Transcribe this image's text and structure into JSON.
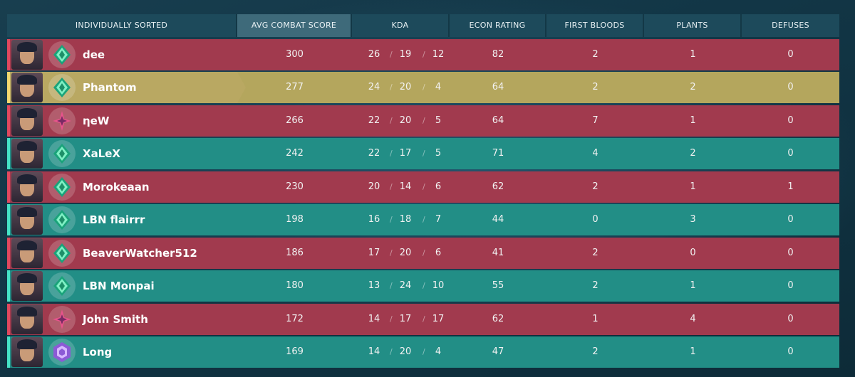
{
  "header": {
    "sorted_label": "INDIVIDUALLY SORTED",
    "columns": [
      "AVG COMBAT SCORE",
      "KDA",
      "ECON RATING",
      "FIRST BLOODS",
      "PLANTS",
      "DEFUSES"
    ],
    "active_column": "AVG COMBAT SCORE"
  },
  "colors": {
    "enemy_row": "#a13a4e",
    "ally_row": "#228e86",
    "self_row": "#b4a65d",
    "enemy_stripe": "#e0485e",
    "ally_stripe": "#45e3c6",
    "self_stripe": "#f2d86f"
  },
  "players": [
    {
      "name": "dee",
      "team": "red",
      "rank_icon": "green-diamond-rank-icon",
      "acs": "300",
      "k": "26",
      "d": "19",
      "a": "12",
      "econ": "82",
      "fb": "2",
      "plants": "1",
      "defuses": "0"
    },
    {
      "name": "Phantom",
      "team": "self",
      "rank_icon": "green-diamond-rank-icon",
      "acs": "277",
      "k": "24",
      "d": "20",
      "a": "4",
      "econ": "64",
      "fb": "2",
      "plants": "2",
      "defuses": "0"
    },
    {
      "name": "ηeW",
      "team": "red",
      "rank_icon": "pink-star-rank-icon",
      "acs": "266",
      "k": "22",
      "d": "20",
      "a": "5",
      "econ": "64",
      "fb": "7",
      "plants": "1",
      "defuses": "0"
    },
    {
      "name": "XaLeX",
      "team": "green",
      "rank_icon": "green-diamond-rank-icon",
      "acs": "242",
      "k": "22",
      "d": "17",
      "a": "5",
      "econ": "71",
      "fb": "4",
      "plants": "2",
      "defuses": "0"
    },
    {
      "name": "Morokeaan",
      "team": "red",
      "rank_icon": "green-diamond-rank-icon",
      "acs": "230",
      "k": "20",
      "d": "14",
      "a": "6",
      "econ": "62",
      "fb": "2",
      "plants": "1",
      "defuses": "1"
    },
    {
      "name": "LBN flairrr",
      "team": "green",
      "rank_icon": "green-diamond-rank-icon",
      "acs": "198",
      "k": "16",
      "d": "18",
      "a": "7",
      "econ": "44",
      "fb": "0",
      "plants": "3",
      "defuses": "0"
    },
    {
      "name": "BeaverWatcher512",
      "team": "red",
      "rank_icon": "green-diamond-rank-icon",
      "acs": "186",
      "k": "17",
      "d": "20",
      "a": "6",
      "econ": "41",
      "fb": "2",
      "plants": "0",
      "defuses": "0"
    },
    {
      "name": "LBN Monpai",
      "team": "green",
      "rank_icon": "green-diamond-rank-icon",
      "acs": "180",
      "k": "13",
      "d": "24",
      "a": "10",
      "econ": "55",
      "fb": "2",
      "plants": "1",
      "defuses": "0"
    },
    {
      "name": "John Smith",
      "team": "red",
      "rank_icon": "pink-star-rank-icon",
      "acs": "172",
      "k": "14",
      "d": "17",
      "a": "17",
      "econ": "62",
      "fb": "1",
      "plants": "4",
      "defuses": "0"
    },
    {
      "name": "Long",
      "team": "green",
      "rank_icon": "purple-hex-rank-icon",
      "acs": "169",
      "k": "14",
      "d": "20",
      "a": "4",
      "econ": "47",
      "fb": "2",
      "plants": "1",
      "defuses": "0"
    }
  ]
}
